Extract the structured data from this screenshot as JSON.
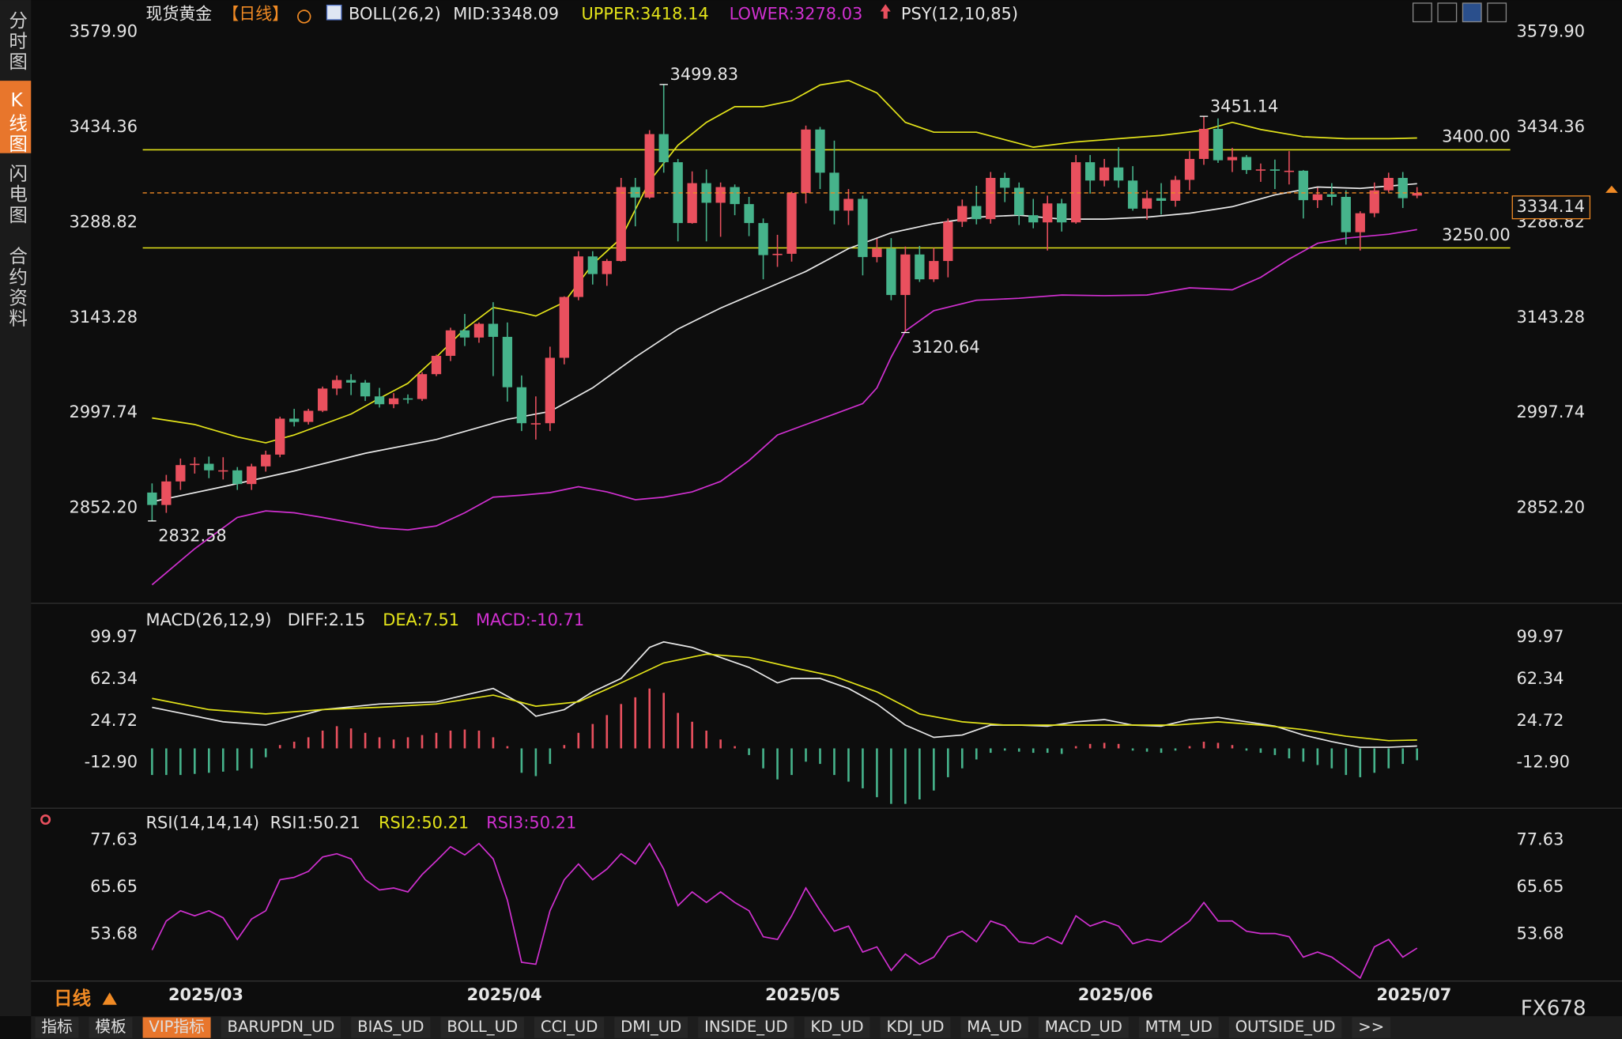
{
  "sidebar": {
    "tabs": [
      "分时图",
      "K线图",
      "闪电图",
      "合约资料"
    ]
  },
  "chart_data": [
    {
      "type": "candlestick",
      "title": "现货黄金",
      "period": "【日线】",
      "legend": [
        "BOLL(26,2)",
        "MID:3348.09",
        "UPPER:3418.14",
        "LOWER:3278.03",
        "PSY(12,10,85)"
      ],
      "categories": [
        null,
        "2025/03",
        null,
        null,
        null,
        null,
        null,
        null,
        null,
        null,
        null,
        null,
        null,
        null,
        null,
        null,
        null,
        null,
        null,
        null,
        null,
        null,
        "2025/04",
        null,
        null,
        null,
        null,
        null,
        null,
        null,
        null,
        null,
        null,
        null,
        null,
        null,
        null,
        null,
        null,
        null,
        null,
        null,
        null,
        "2025/05",
        null,
        null,
        null,
        null,
        null,
        null,
        null,
        null,
        null,
        null,
        null,
        null,
        null,
        null,
        null,
        null,
        null,
        null,
        null,
        null,
        null,
        "2025/06",
        null,
        null,
        null,
        null,
        null,
        null,
        null,
        null,
        null,
        null,
        null,
        null,
        null,
        null,
        null,
        null,
        null,
        null,
        null,
        null,
        "2025/07",
        null,
        null,
        null
      ],
      "open": [
        2876,
        2857,
        2893,
        2918,
        2920,
        2910,
        2910,
        2889,
        2916,
        2934,
        2989,
        2984,
        3001,
        3035,
        3048,
        3044,
        3023,
        3011,
        3020,
        3019,
        3057,
        3085,
        3124,
        3113,
        3134,
        3114,
        3037,
        2982,
        2982,
        3082,
        3175,
        3237,
        3210,
        3230,
        3343,
        3327,
        3424,
        3381,
        3288,
        3349,
        3319,
        3343,
        3317,
        3288,
        3239,
        3241,
        3334,
        3431,
        3365,
        3307,
        3325,
        3236,
        3249,
        3178,
        3240,
        3202,
        3230,
        3290,
        3314,
        3294,
        3357,
        3342,
        3300,
        3289,
        3318,
        3289,
        3381,
        3353,
        3373,
        3353,
        3310,
        3326,
        3322,
        3354,
        3386,
        3432,
        3384,
        3389,
        3369,
        3370,
        3368,
        3368,
        3323,
        3332,
        3328,
        3274,
        3303,
        3338,
        3357,
        3330
      ],
      "high": [
        2890,
        2903,
        2928,
        2930,
        2931,
        2930,
        2915,
        2920,
        2940,
        2992,
        3004,
        3004,
        3038,
        3055,
        3057,
        3048,
        3036,
        3028,
        3026,
        3060,
        3087,
        3128,
        3149,
        3136,
        3167,
        3136,
        3055,
        3023,
        3099,
        3176,
        3245,
        3245,
        3233,
        3357,
        3357,
        3430,
        3499.83,
        3386,
        3367,
        3370,
        3350,
        3347,
        3328,
        3295,
        3270,
        3336,
        3437,
        3435,
        3414,
        3340,
        3330,
        3264,
        3265,
        3252,
        3253,
        3250,
        3295,
        3324,
        3345,
        3366,
        3365,
        3350,
        3325,
        3330,
        3325,
        3392,
        3392,
        3386,
        3404,
        3375,
        3338,
        3349,
        3360,
        3398,
        3451.14,
        3448,
        3403,
        3392,
        3379,
        3385,
        3398,
        3369,
        3342,
        3349,
        3338,
        3306,
        3350,
        3365,
        3366,
        3343
      ],
      "low": [
        2832.58,
        2845,
        2880,
        2905,
        2898,
        2896,
        2880,
        2880,
        2908,
        2930,
        2977,
        2980,
        2999,
        3025,
        3025,
        3016,
        3006,
        3005,
        3012,
        3016,
        3054,
        3077,
        3100,
        3105,
        3054,
        3015,
        2970,
        2957,
        2970,
        3072,
        3170,
        3194,
        3192,
        3229,
        3283,
        3325,
        3365,
        3260,
        3287,
        3260,
        3267,
        3300,
        3268,
        3202,
        3221,
        3229,
        3318,
        3340,
        3286,
        3285,
        3208,
        3228,
        3170,
        3120.64,
        3198,
        3198,
        3205,
        3282,
        3286,
        3287,
        3320,
        3285,
        3280,
        3246,
        3275,
        3287,
        3333,
        3344,
        3342,
        3307,
        3293,
        3301,
        3313,
        3338,
        3377,
        3380,
        3366,
        3363,
        3351,
        3340,
        3347,
        3295,
        3311,
        3315,
        3255,
        3246,
        3297,
        3335,
        3311,
        3326
      ],
      "close": [
        2857,
        2893,
        2918,
        2920,
        2910,
        2910,
        2889,
        2916,
        2934,
        2989,
        2984,
        3001,
        3035,
        3048,
        3044,
        3023,
        3011,
        3020,
        3019,
        3057,
        3085,
        3124,
        3113,
        3134,
        3114,
        3037,
        2982,
        2982,
        3082,
        3175,
        3237,
        3210,
        3230,
        3343,
        3327,
        3424,
        3381,
        3288,
        3349,
        3319,
        3343,
        3317,
        3288,
        3239,
        3241,
        3334,
        3431,
        3365,
        3307,
        3325,
        3236,
        3249,
        3178,
        3240,
        3202,
        3230,
        3290,
        3314,
        3294,
        3357,
        3342,
        3300,
        3289,
        3318,
        3289,
        3381,
        3353,
        3373,
        3353,
        3310,
        3326,
        3322,
        3354,
        3386,
        3432,
        3384,
        3389,
        3369,
        3370,
        3368,
        3368,
        3323,
        3332,
        3328,
        3274,
        3303,
        3338,
        3357,
        3326,
        3334.14
      ],
      "up_color": "#e9505e",
      "down_color": "#46b38b",
      "series": [
        {
          "color": "#e3e31a",
          "x": [
            0,
            3,
            6,
            8,
            10,
            12,
            14,
            16,
            18,
            20,
            22,
            24,
            26,
            27,
            29,
            31,
            33,
            35,
            37,
            39,
            41,
            43,
            45,
            47,
            49,
            51,
            53,
            55,
            58,
            62,
            65,
            68,
            71,
            74,
            76,
            78,
            81,
            84,
            87,
            89
          ],
          "values": [
            2990,
            2980,
            2961,
            2952,
            2964,
            2980,
            2996,
            3020,
            3043,
            3083,
            3126,
            3159,
            3151,
            3146,
            3167,
            3225,
            3265,
            3352,
            3407,
            3442,
            3466,
            3466,
            3475,
            3499,
            3506,
            3487,
            3442,
            3427,
            3427,
            3404,
            3412,
            3417,
            3422,
            3430,
            3442,
            3431,
            3420,
            3417,
            3417,
            3418.14
          ]
        },
        {
          "color": "#e8e8e8",
          "x": [
            0,
            5,
            10,
            15,
            20,
            25,
            28,
            31,
            34,
            37,
            40,
            43,
            46,
            49,
            52,
            55,
            58,
            61,
            64,
            67,
            70,
            73,
            76,
            79,
            82,
            85,
            89
          ],
          "values": [
            2862,
            2885,
            2909,
            2936,
            2957,
            2988,
            3000,
            3036,
            3083,
            3126,
            3158,
            3186,
            3214,
            3249,
            3273,
            3287,
            3297,
            3300,
            3294,
            3294,
            3297,
            3303,
            3313,
            3331,
            3343,
            3341,
            3348.09
          ]
        },
        {
          "color": "#d030d0",
          "x": [
            0,
            3,
            6,
            8,
            10,
            12,
            14,
            16,
            18,
            20,
            22,
            24,
            26,
            28,
            30,
            32,
            34,
            36,
            38,
            40,
            42,
            44,
            46,
            48,
            50,
            51,
            52,
            53,
            55,
            58,
            61,
            64,
            67,
            70,
            73,
            76,
            78,
            80,
            82,
            84,
            87,
            89
          ],
          "values": [
            2735,
            2790,
            2838,
            2848,
            2845,
            2838,
            2830,
            2822,
            2819,
            2825,
            2845,
            2869,
            2872,
            2876,
            2885,
            2877,
            2865,
            2869,
            2877,
            2893,
            2925,
            2964,
            2980,
            2996,
            3012,
            3036,
            3083,
            3123,
            3154,
            3170,
            3173,
            3178,
            3177,
            3178,
            3189,
            3186,
            3205,
            3233,
            3257,
            3265,
            3271,
            3278.03
          ]
        }
      ],
      "levels": [
        {
          "value": 3400,
          "label": "3400.00",
          "color": "#e3e31a"
        },
        {
          "value": 3250,
          "label": "3250.00",
          "color": "#e3e31a"
        }
      ],
      "last_price": {
        "value": 3334.14,
        "label": "3334.14",
        "color": "#f08a24"
      },
      "annotations": [
        {
          "x": 36,
          "value": 3499.83,
          "label": "3499.83",
          "position": "above",
          "color": "#e9505e"
        },
        {
          "x": 0,
          "value": 2832.58,
          "label": "2832.58",
          "position": "below",
          "color": "#46b38b"
        },
        {
          "x": 74,
          "value": 3451.14,
          "label": "3451.14",
          "position": "above",
          "color": "#e9505e"
        },
        {
          "x": 53,
          "value": 3120.64,
          "label": "3120.64",
          "position": "below",
          "color": "#46b38b"
        }
      ],
      "ylim": [
        2711.4,
        3597.3
      ],
      "yticks": [
        {
          "value": 3579.9,
          "label": "3579.90"
        },
        3434.36,
        3288.82,
        3143.28,
        2997.74,
        {
          "value": 2852.2,
          "label": "2852.20"
        }
      ]
    },
    {
      "type": "macd",
      "title": "MACD(26,12,9)",
      "legend": [
        "DIFF:2.15",
        "DEA:7.51",
        "MACD:-10.71"
      ],
      "values": [
        -24,
        -24,
        -24,
        -23,
        -22,
        -21,
        -20,
        -18,
        -8,
        3,
        6,
        10,
        16,
        20,
        18,
        14,
        10,
        8,
        10,
        12,
        14,
        16,
        17,
        16,
        10,
        2,
        -22,
        -25,
        -14,
        3,
        14,
        22,
        30,
        40,
        46,
        54,
        50,
        32,
        24,
        16,
        8,
        2,
        -6,
        -18,
        -28,
        -24,
        -12,
        -14,
        -24,
        -30,
        -36,
        -44,
        -50,
        -50,
        -46,
        -38,
        -26,
        -18,
        -10,
        -4,
        -2,
        -3,
        -4,
        -4,
        -5,
        2,
        4,
        5,
        4,
        -2,
        -3,
        -4,
        -2,
        2,
        6,
        5,
        3,
        -2,
        -4,
        -6,
        -9,
        -12,
        -15,
        -18,
        -24,
        -26,
        -22,
        -18,
        -14,
        -10.71
      ],
      "up_color": "#e9505e",
      "down_color": "#46b38b",
      "series": [
        {
          "color": "#e8e8e8",
          "x": [
            0,
            5,
            8,
            12,
            16,
            20,
            24,
            26,
            27,
            29,
            31,
            33,
            35,
            36,
            38,
            40,
            42,
            44,
            45,
            47,
            49,
            51,
            53,
            55,
            57,
            59,
            61,
            63,
            65,
            67,
            69,
            71,
            73,
            75,
            77,
            79,
            81,
            83,
            85,
            87,
            89
          ],
          "values": [
            37,
            24,
            21,
            35,
            40,
            42,
            54,
            40,
            29,
            35,
            51,
            63,
            91,
            96,
            91,
            82,
            73,
            59,
            63,
            63,
            54,
            40,
            21,
            10,
            12,
            21,
            21,
            20,
            24,
            26,
            21,
            20,
            26,
            28,
            24,
            20,
            12,
            6,
            1,
            1,
            2.15
          ]
        },
        {
          "color": "#e3e31a",
          "x": [
            0,
            4,
            8,
            12,
            16,
            20,
            24,
            27,
            30,
            33,
            36,
            39,
            42,
            45,
            48,
            51,
            54,
            57,
            60,
            63,
            66,
            69,
            72,
            75,
            78,
            81,
            84,
            87,
            89
          ],
          "values": [
            45,
            35,
            31,
            35,
            37,
            40,
            48,
            38,
            42,
            59,
            77,
            85,
            82,
            73,
            65,
            51,
            31,
            24,
            21,
            21,
            21,
            21,
            21,
            24,
            21,
            17,
            11,
            7,
            7.51
          ]
        }
      ],
      "ylim": [
        -53,
        114.9
      ],
      "yticks": [
        99.97,
        62.34,
        24.72,
        {
          "value": -12.9,
          "label": "-12.90"
        }
      ]
    },
    {
      "type": "line",
      "title": "RSI(14,14,14)",
      "legend": [
        "RSI1:50.21",
        "RSI2:50.21",
        "RSI3:50.21"
      ],
      "series": [
        {
          "color": "#d030d0",
          "values": [
            49.7,
            57.1,
            59.7,
            58.4,
            59.7,
            57.9,
            52.4,
            57.6,
            59.7,
            67.6,
            68.2,
            69.7,
            73.4,
            74.2,
            72.9,
            67.6,
            65,
            65.5,
            64.5,
            68.9,
            72.4,
            76,
            73.9,
            76.8,
            72.9,
            62.4,
            46.6,
            46.1,
            59.7,
            67.6,
            71.6,
            67.6,
            70.3,
            74.2,
            71.6,
            76.8,
            70.3,
            61,
            64.5,
            61.8,
            64.5,
            61.8,
            59.7,
            53.1,
            52.4,
            58.4,
            65.5,
            59.7,
            54.5,
            55.8,
            49.2,
            50.5,
            44.5,
            48.7,
            46.1,
            47.9,
            53.1,
            54.5,
            51.8,
            57.1,
            55.8,
            51.8,
            51.3,
            53.1,
            51.3,
            58.4,
            55.8,
            57.1,
            55.8,
            51.3,
            52.4,
            51.8,
            54.5,
            57.1,
            61.8,
            57.1,
            57.1,
            54.5,
            53.9,
            53.9,
            53.1,
            47.9,
            49.2,
            47.9,
            45.3,
            42.6,
            50.5,
            52.4,
            47.9,
            50.21
          ]
        }
      ],
      "ylim": [
        41.3,
        82.1
      ],
      "yticks": [
        77.63,
        65.65,
        53.68
      ]
    }
  ],
  "footer": {
    "period": "日线",
    "tabs": [
      "指标",
      "模板",
      "VIP指标",
      "BARUPDN_UD",
      "BIAS_UD",
      "BOLL_UD",
      "CCI_UD",
      "DMI_UD",
      "INSIDE_UD",
      "KD_UD",
      "KDJ_UD",
      "MA_UD",
      "MACD_UD",
      "MTM_UD",
      "OUTSIDE_UD",
      ">>"
    ],
    "active_tab": 2,
    "brand": "FX678"
  }
}
